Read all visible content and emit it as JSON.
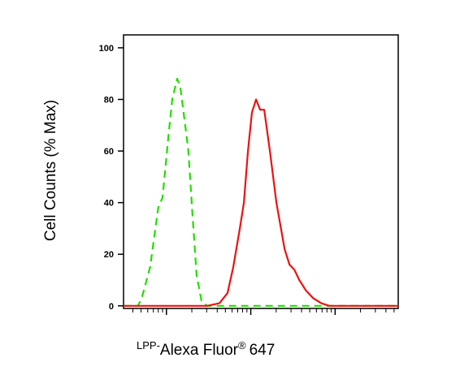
{
  "chart_data": {
    "type": "line",
    "ylabel": "Cell Counts (% Max)",
    "xlabel": {
      "prefix": "LPP-",
      "main": "Alexa Fluor",
      "mark": "®",
      "suffix": "647"
    },
    "xscale": "log",
    "xlim": [
      31,
      56000
    ],
    "ylim": [
      -1,
      105
    ],
    "yticks": [
      0,
      20,
      40,
      60,
      80,
      100
    ],
    "xticks": [
      40,
      50,
      60,
      70,
      80,
      90,
      100,
      200,
      300,
      400,
      500,
      600,
      700,
      800,
      900,
      1000,
      2000,
      3000,
      4000,
      5000,
      6000,
      7000,
      8000,
      9000,
      10000,
      20000,
      30000,
      40000,
      50000
    ],
    "series": [
      {
        "color": "#22dd00",
        "dash": true,
        "x": [
          31,
          37,
          46,
          51,
          64,
          80,
          90,
          105,
          117,
          134,
          146,
          167,
          182,
          204,
          228,
          260,
          304,
          1000,
          10000,
          56000
        ],
        "values": [
          0,
          0,
          0,
          3,
          15,
          38,
          42,
          65,
          80,
          88,
          85,
          70,
          60,
          35,
          12,
          2,
          0,
          0,
          0,
          0
        ]
      },
      {
        "color": "#ee1111",
        "dash": false,
        "x": [
          31,
          304,
          425,
          530,
          620,
          741,
          828,
          925,
          1033,
          1155,
          1291,
          1443,
          1687,
          2015,
          2517,
          2877,
          3289,
          3759,
          4490,
          5483,
          6853,
          8556,
          56000
        ],
        "values": [
          0,
          0,
          1,
          5,
          15,
          30,
          40,
          60,
          75,
          80,
          76,
          76,
          60,
          40,
          22,
          16,
          14,
          10,
          6,
          3,
          1,
          0,
          0
        ]
      }
    ]
  }
}
